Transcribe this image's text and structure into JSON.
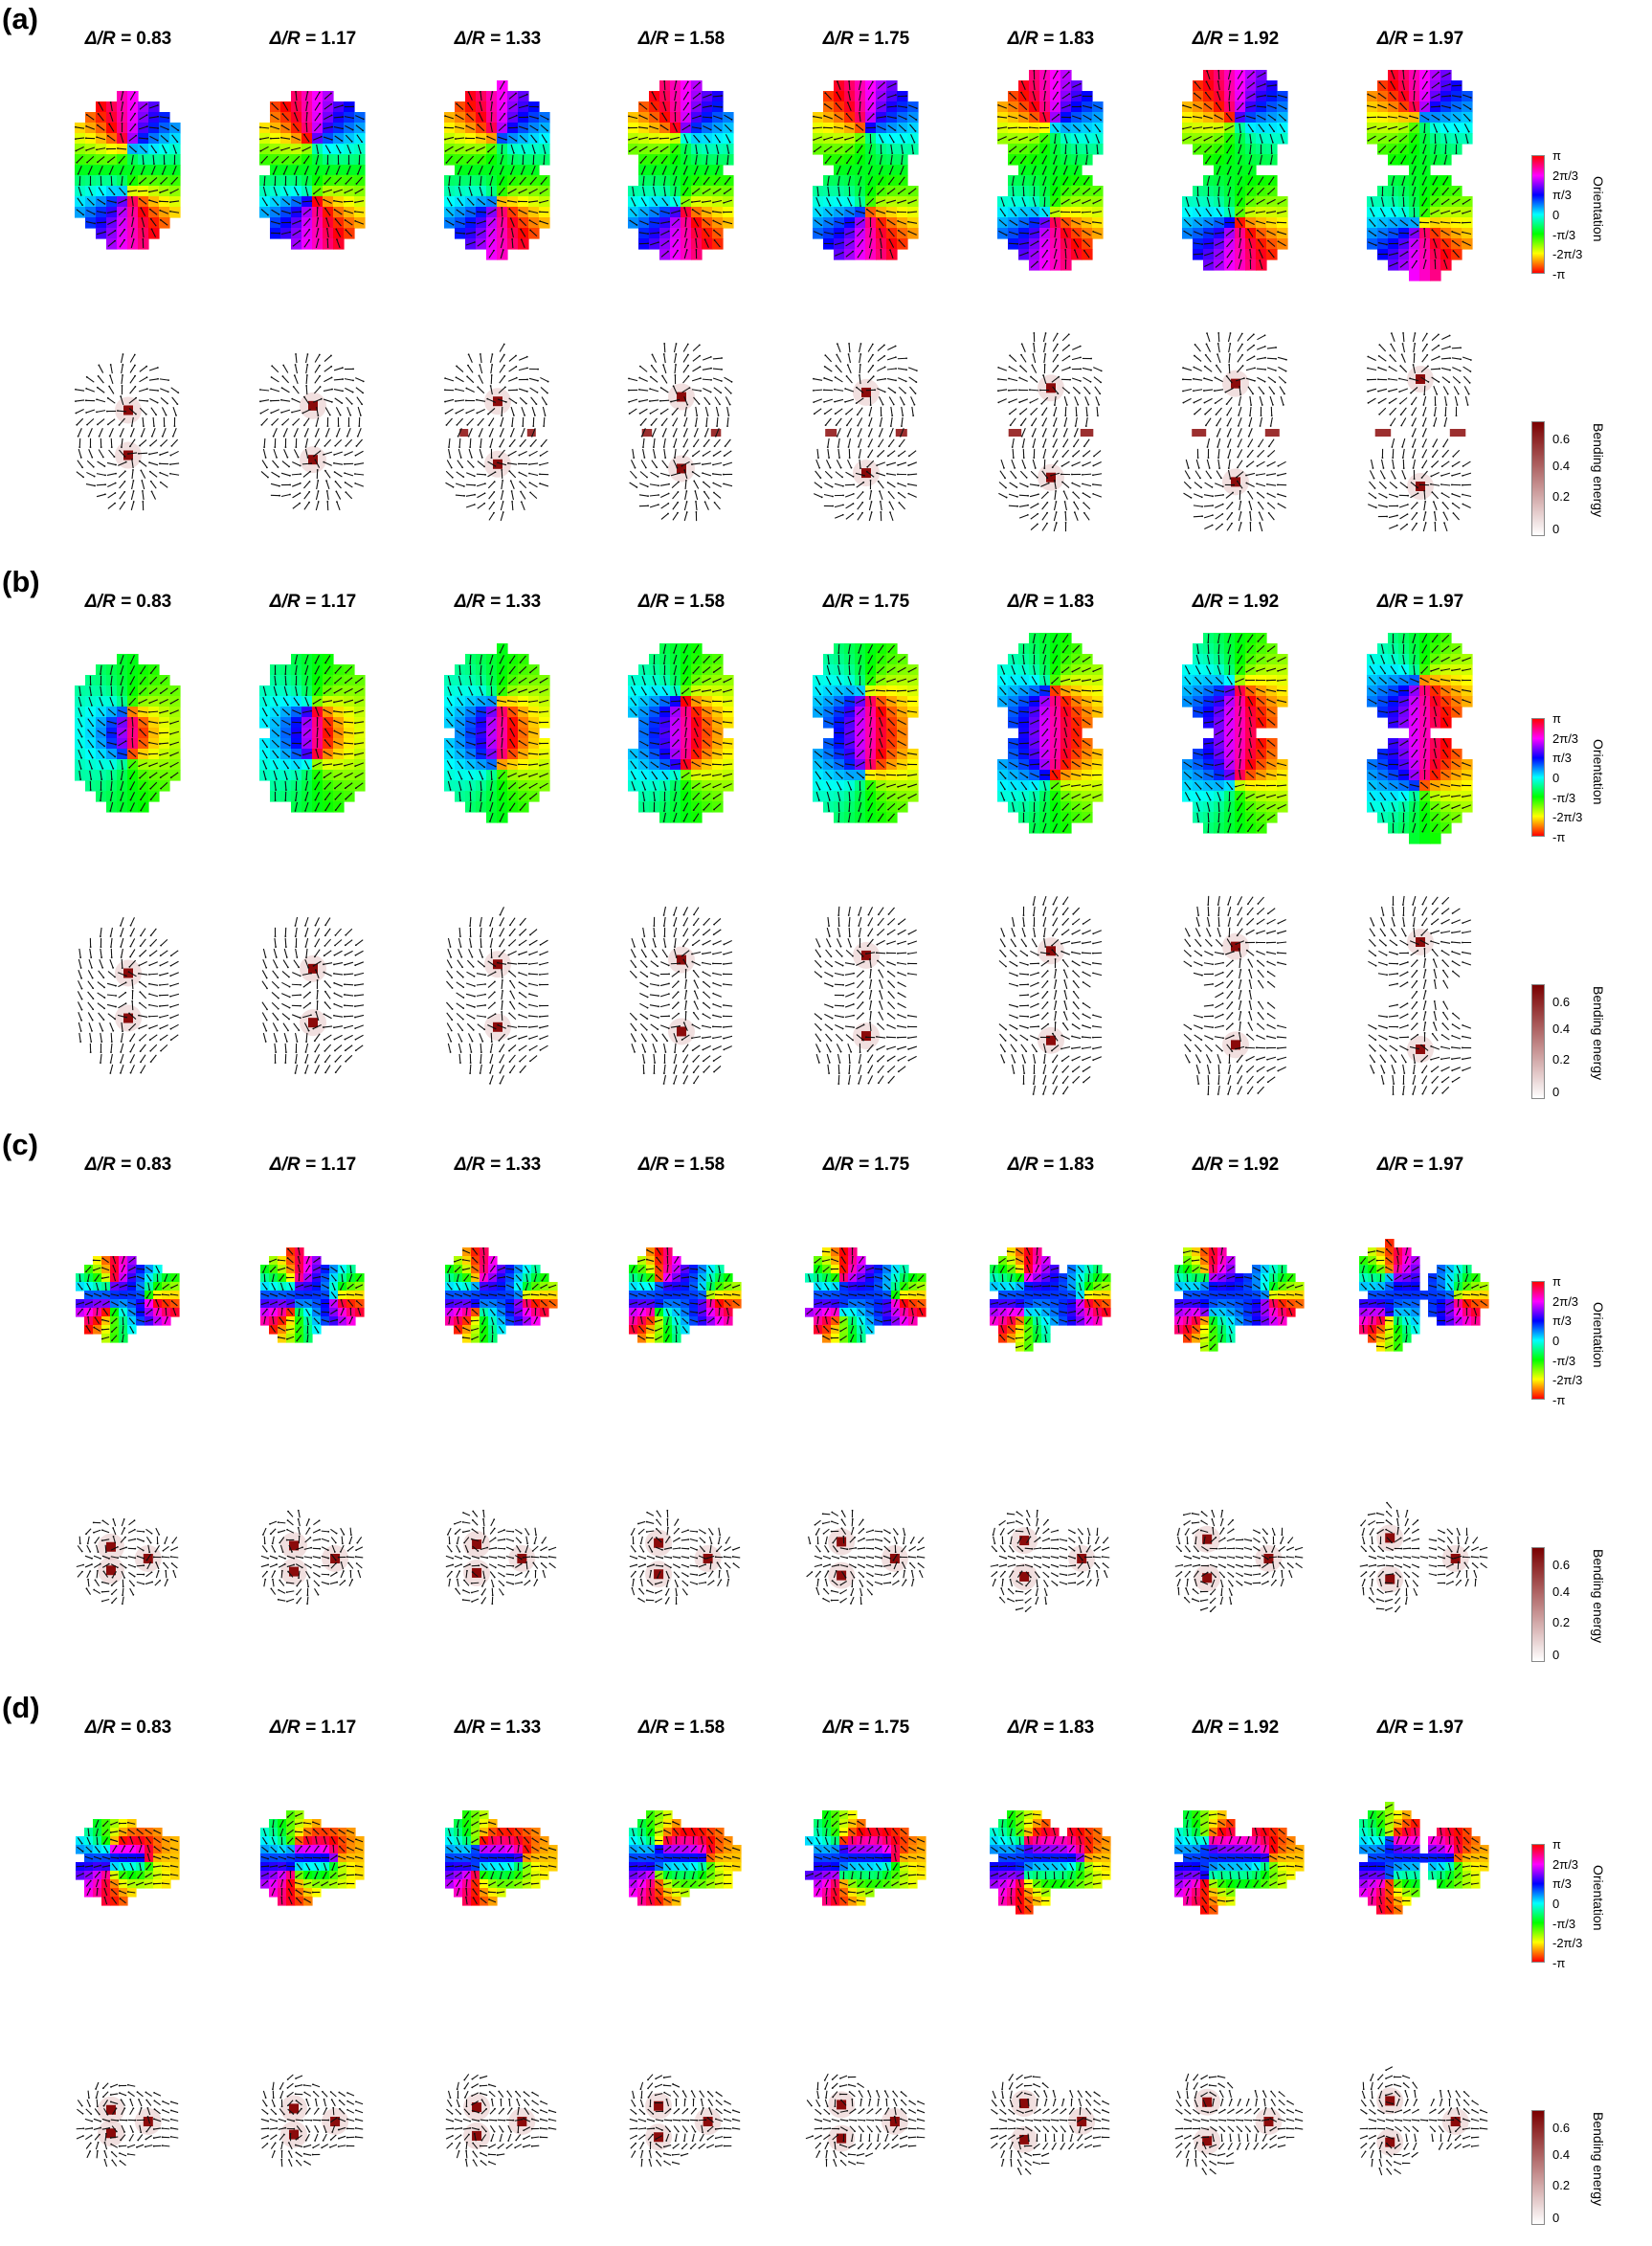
{
  "column_prefix": "Δ/R = ",
  "ratios": [
    "0.83",
    "1.17",
    "1.33",
    "1.58",
    "1.75",
    "1.83",
    "1.92",
    "1.97"
  ],
  "panels": [
    {
      "label": "(a)",
      "defects": 2,
      "config": "same"
    },
    {
      "label": "(b)",
      "defects": 2,
      "config": "opposite"
    },
    {
      "label": "(c)",
      "defects": 3,
      "config": "same"
    },
    {
      "label": "(d)",
      "defects": 3,
      "config": "mixed"
    }
  ],
  "orientation_colorbar": {
    "title": "Orientation",
    "ticks": [
      "π",
      "2π/3",
      "π/3",
      "0",
      "-π/3",
      "-2π/3",
      "-π"
    ],
    "colors": [
      "#ff0000",
      "#ff00ff",
      "#0000ff",
      "#00ffff",
      "#00ff00",
      "#ffff00",
      "#ff0000"
    ]
  },
  "bending_colorbar": {
    "title": "Bending energy",
    "ticks": [
      "0.6",
      "0.4",
      "0.2",
      "0"
    ],
    "colors": [
      "#7a0000",
      "#ffffff"
    ]
  }
}
